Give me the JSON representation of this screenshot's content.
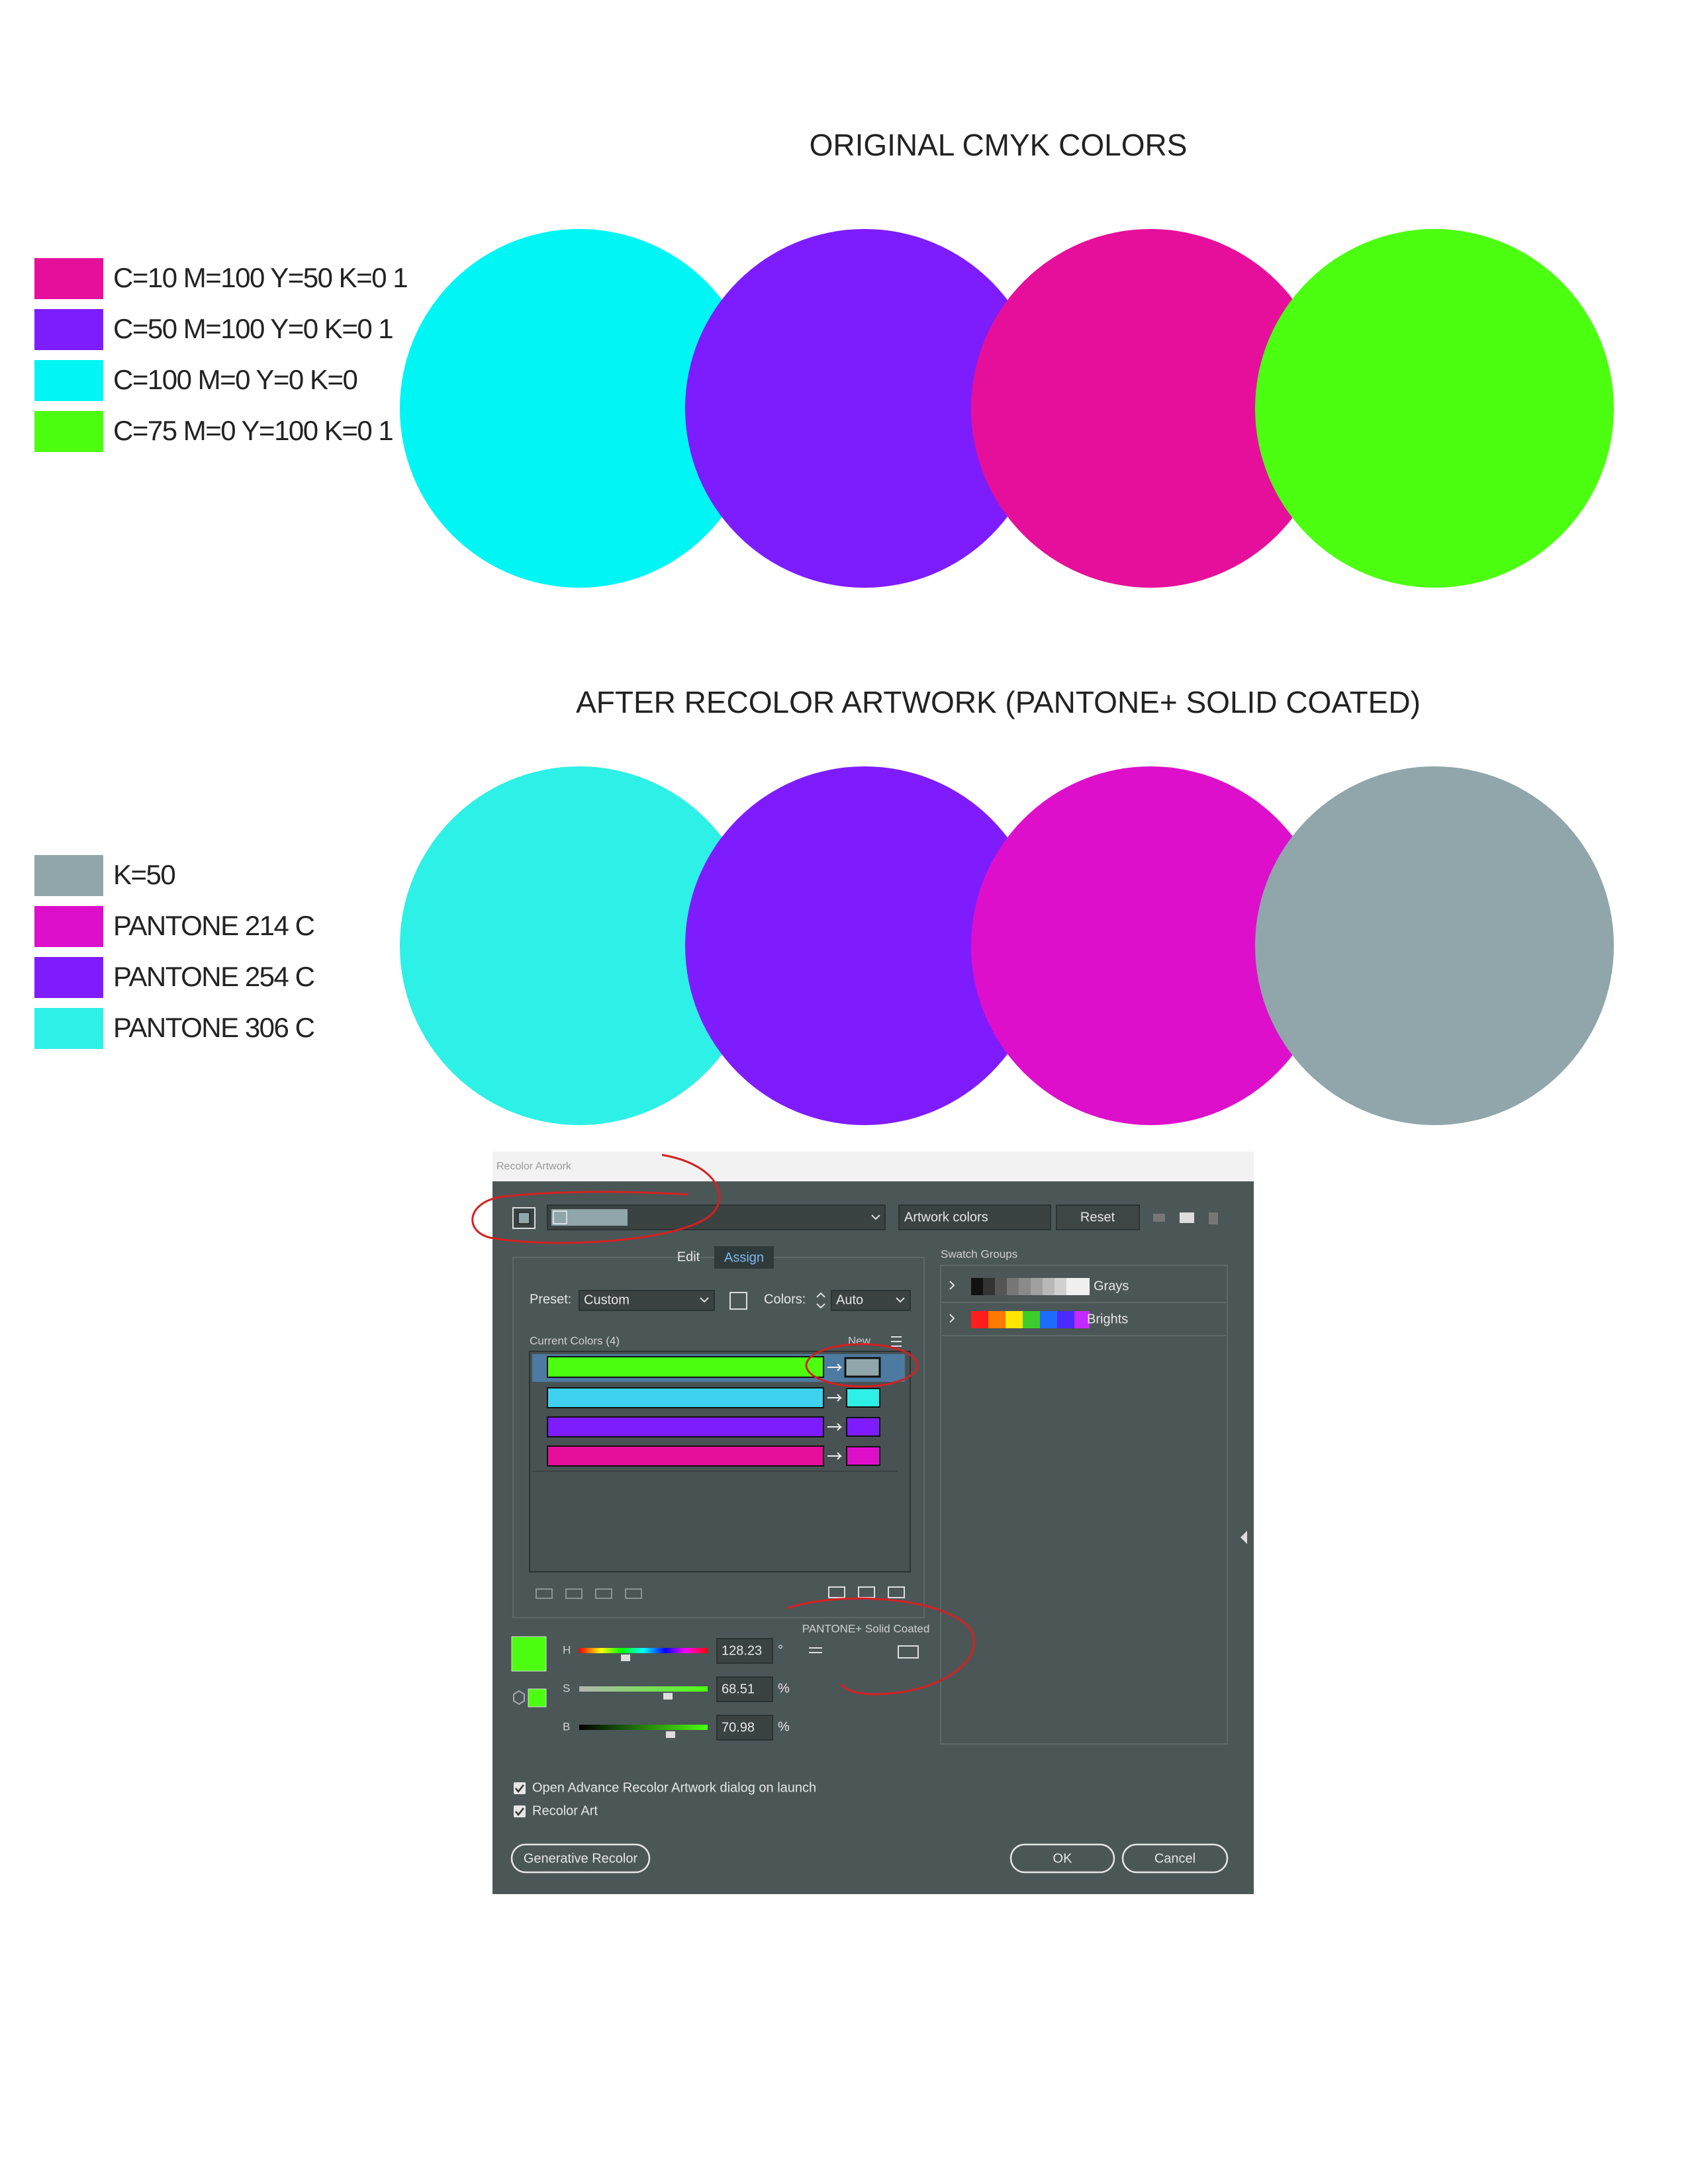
{
  "top_section": {
    "title": "ORIGINAL CMYK COLORS",
    "legend": [
      "C=10 M=100 Y=50 K=0 1",
      "C=50 M=100 Y=0 K=0 1",
      "C=100 M=0 Y=0 K=0",
      "C=75 M=0 Y=100 K=0 1"
    ]
  },
  "bottom_section": {
    "title": "AFTER RECOLOR ARTWORK (PANTONE+ SOLID COATED)",
    "legend": [
      "K=50",
      "PANTONE 214 C",
      "PANTONE 254 C",
      "PANTONE 306 C"
    ]
  },
  "dialog": {
    "title": "Recolor Artwork",
    "artwork_field": "Artwork colors",
    "reset": "Reset",
    "tabs": [
      "Edit",
      "Assign"
    ],
    "preset_label": "Preset:",
    "preset_value": "Custom",
    "colors_label": "Colors:",
    "colors_value": "Auto",
    "current_colors": "Current Colors (4)",
    "new_label": "New",
    "swatch_groups": {
      "title": "Swatch Groups",
      "groups": [
        "Grays",
        "Brights"
      ]
    },
    "library": "PANTONE+ Solid Coated",
    "hsb": [
      {
        "label": "H",
        "value": "128.23",
        "unit": "°"
      },
      {
        "label": "S",
        "value": "68.51",
        "unit": "%"
      },
      {
        "label": "B",
        "value": "70.98",
        "unit": "%"
      }
    ],
    "checkboxes": [
      "Open Advance Recolor Artwork dialog on launch",
      "Recolor Art"
    ],
    "buttons": {
      "generative": "Generative Recolor",
      "ok": "OK",
      "cancel": "Cancel"
    }
  }
}
